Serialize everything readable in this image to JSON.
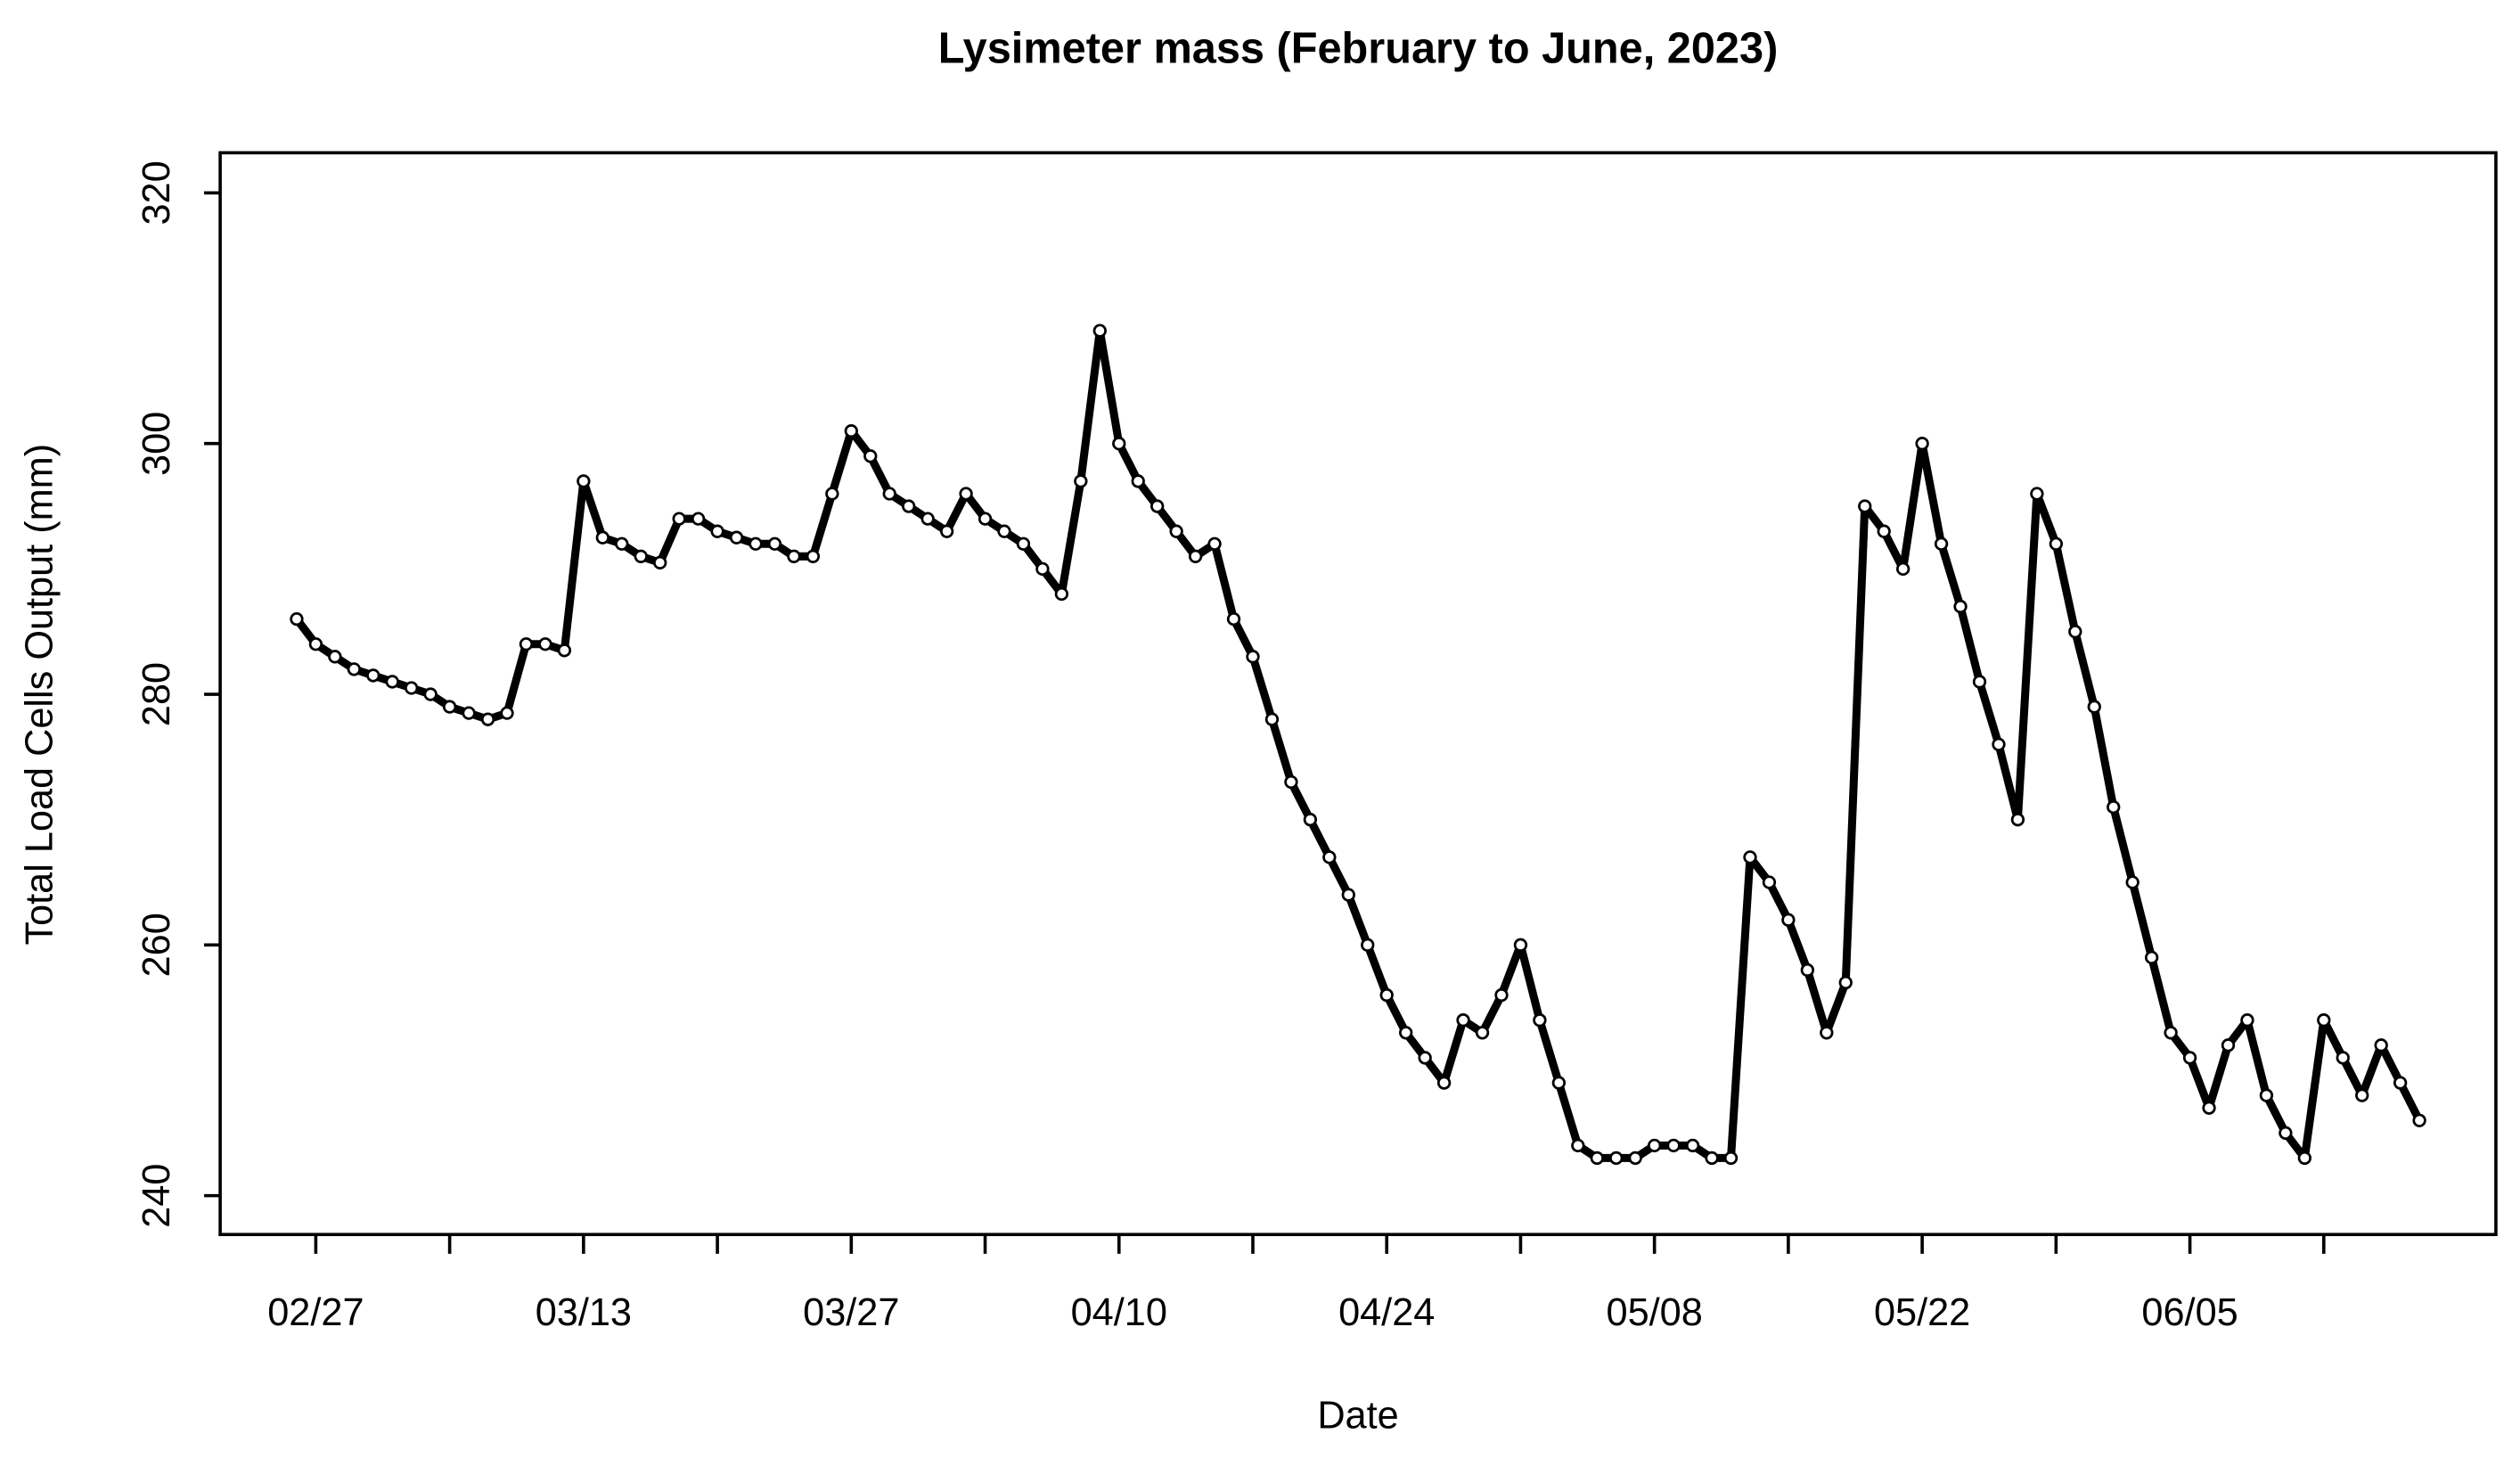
{
  "chart_data": {
    "type": "scatter",
    "title": "Lysimeter mass (February to June, 2023)",
    "xlabel": "Date",
    "ylabel": "Total Load Cells Output (mm)",
    "x": [
      "02/26",
      "02/27",
      "02/28",
      "03/01",
      "03/02",
      "03/03",
      "03/04",
      "03/05",
      "03/06",
      "03/07",
      "03/08",
      "03/09",
      "03/10",
      "03/11",
      "03/12",
      "03/13",
      "03/14",
      "03/15",
      "03/16",
      "03/17",
      "03/18",
      "03/19",
      "03/20",
      "03/21",
      "03/22",
      "03/23",
      "03/24",
      "03/25",
      "03/26",
      "03/27",
      "03/28",
      "03/29",
      "03/30",
      "03/31",
      "04/01",
      "04/02",
      "04/03",
      "04/04",
      "04/05",
      "04/06",
      "04/07",
      "04/08",
      "04/09",
      "04/10",
      "04/11",
      "04/12",
      "04/13",
      "04/14",
      "04/15",
      "04/16",
      "04/17",
      "04/18",
      "04/19",
      "04/20",
      "04/21",
      "04/22",
      "04/23",
      "04/24",
      "04/25",
      "04/26",
      "04/27",
      "04/28",
      "04/29",
      "04/30",
      "05/01",
      "05/02",
      "05/03",
      "05/04",
      "05/05",
      "05/06",
      "05/07",
      "05/08",
      "05/09",
      "05/10",
      "05/11",
      "05/12",
      "05/13",
      "05/14",
      "05/15",
      "05/16",
      "05/17",
      "05/18",
      "05/19",
      "05/20",
      "05/21",
      "05/22",
      "05/23",
      "05/24",
      "05/25",
      "05/26",
      "05/27",
      "05/28",
      "05/29",
      "05/30",
      "05/31",
      "06/01",
      "06/02",
      "06/03",
      "06/04",
      "06/05",
      "06/06",
      "06/07",
      "06/08",
      "06/09",
      "06/10",
      "06/11",
      "06/12",
      "06/13",
      "06/14",
      "06/15",
      "06/16",
      "06/17"
    ],
    "values": [
      286,
      284,
      283,
      282,
      281.5,
      281,
      280.5,
      280,
      279,
      278.5,
      278,
      278.5,
      284,
      284,
      283.5,
      297,
      292.5,
      292,
      291,
      290.5,
      294,
      294,
      293,
      292.5,
      292,
      292,
      291,
      291,
      296,
      301,
      299,
      296,
      295,
      294,
      293,
      296,
      294,
      293,
      292,
      290,
      288,
      297,
      309,
      300,
      297,
      295,
      293,
      291,
      292,
      286,
      283,
      278,
      273,
      270,
      267,
      264,
      260,
      256,
      253,
      251,
      249,
      254,
      253,
      256,
      260,
      254,
      249,
      244,
      243,
      243,
      243,
      244,
      244,
      244,
      243,
      243,
      267,
      265,
      262,
      258,
      253,
      257,
      295,
      293,
      290,
      300,
      292,
      287,
      281,
      276,
      270,
      296,
      292,
      285,
      279,
      271,
      265,
      259,
      253,
      251,
      247,
      252,
      254,
      248,
      245,
      243,
      254,
      251,
      248,
      252,
      249,
      246
    ],
    "color": "#000000",
    "xlim": [
      "02/22",
      "06/21"
    ],
    "xticks": [
      "02/27",
      "03/13",
      "03/27",
      "04/10",
      "04/24",
      "05/08",
      "05/22",
      "06/05"
    ],
    "xminor_ticks": [
      "03/06",
      "03/20",
      "04/03",
      "04/17",
      "05/01",
      "05/15",
      "05/29",
      "06/12"
    ],
    "ylim": [
      236.9,
      323.2
    ],
    "yticks": [
      240,
      260,
      280,
      300,
      320
    ],
    "grid": false
  }
}
